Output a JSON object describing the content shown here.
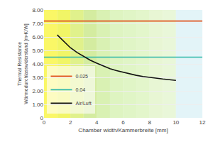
{
  "chart_data": {
    "type": "line",
    "xlabel": "Chamber width/Kammerbreite [mm]",
    "ylabel": "Thermal Resistance\nWärmedurchlasswiderstand [m²K/W]",
    "series": [
      {
        "name": "0.025",
        "color": "#e05520",
        "x": [
          0,
          12
        ],
        "values": [
          7.18,
          7.18
        ]
      },
      {
        "name": "0.04",
        "color": "#30b8a8",
        "x": [
          0,
          12
        ],
        "values": [
          4.5,
          4.5
        ]
      },
      {
        "name": "Air/Luft",
        "color": "#111111",
        "x": [
          1.0,
          1.5,
          2.0,
          2.5,
          3.0,
          3.5,
          4.0,
          4.5,
          5.0,
          5.5,
          6.0,
          6.5,
          7.0,
          7.5,
          8.0,
          8.5,
          9.0,
          9.5,
          10.0
        ],
        "values": [
          6.15,
          5.65,
          5.2,
          4.85,
          4.55,
          4.28,
          4.05,
          3.83,
          3.65,
          3.5,
          3.37,
          3.25,
          3.15,
          3.07,
          3.0,
          2.93,
          2.88,
          2.83,
          2.78
        ]
      }
    ],
    "zones": [
      {
        "x0": 0,
        "x1": 1,
        "color": "#f7f200"
      },
      {
        "x0": 1,
        "x1": 2,
        "color": "#e8ee00"
      },
      {
        "x0": 2,
        "x1": 3,
        "color": "#cce840"
      },
      {
        "x0": 3,
        "x1": 4,
        "color": "#b8e060"
      },
      {
        "x0": 4,
        "x1": 5,
        "color": "#c0e880"
      },
      {
        "x0": 5,
        "x1": 6,
        "color": "#c8ec98"
      },
      {
        "x0": 6,
        "x1": 7,
        "color": "#cceea0"
      },
      {
        "x0": 7,
        "x1": 8,
        "color": "#d0f0a8"
      },
      {
        "x0": 8,
        "x1": 9,
        "color": "#d8f0b8"
      },
      {
        "x0": 9,
        "x1": 10,
        "color": "#daf2c0"
      },
      {
        "x0": 10,
        "x1": 12,
        "color": "#d0ecf4"
      }
    ],
    "xlim": [
      0,
      12
    ],
    "xticks": [
      0,
      2,
      4,
      6,
      8,
      10,
      12
    ],
    "ylim": [
      0,
      8.0
    ],
    "yticks": [
      0,
      {
        "value": 1,
        "label": "1.00"
      },
      {
        "value": 2,
        "label": "2.00"
      },
      {
        "value": 3,
        "label": "3.00"
      },
      {
        "value": 4,
        "label": "4.00"
      },
      {
        "value": 5,
        "label": "5.00"
      },
      {
        "value": 6,
        "label": "6.00"
      },
      {
        "value": 7,
        "label": "7.00"
      },
      {
        "value": 8,
        "label": "8.00"
      }
    ],
    "grid": "y",
    "legend": "lower left"
  }
}
